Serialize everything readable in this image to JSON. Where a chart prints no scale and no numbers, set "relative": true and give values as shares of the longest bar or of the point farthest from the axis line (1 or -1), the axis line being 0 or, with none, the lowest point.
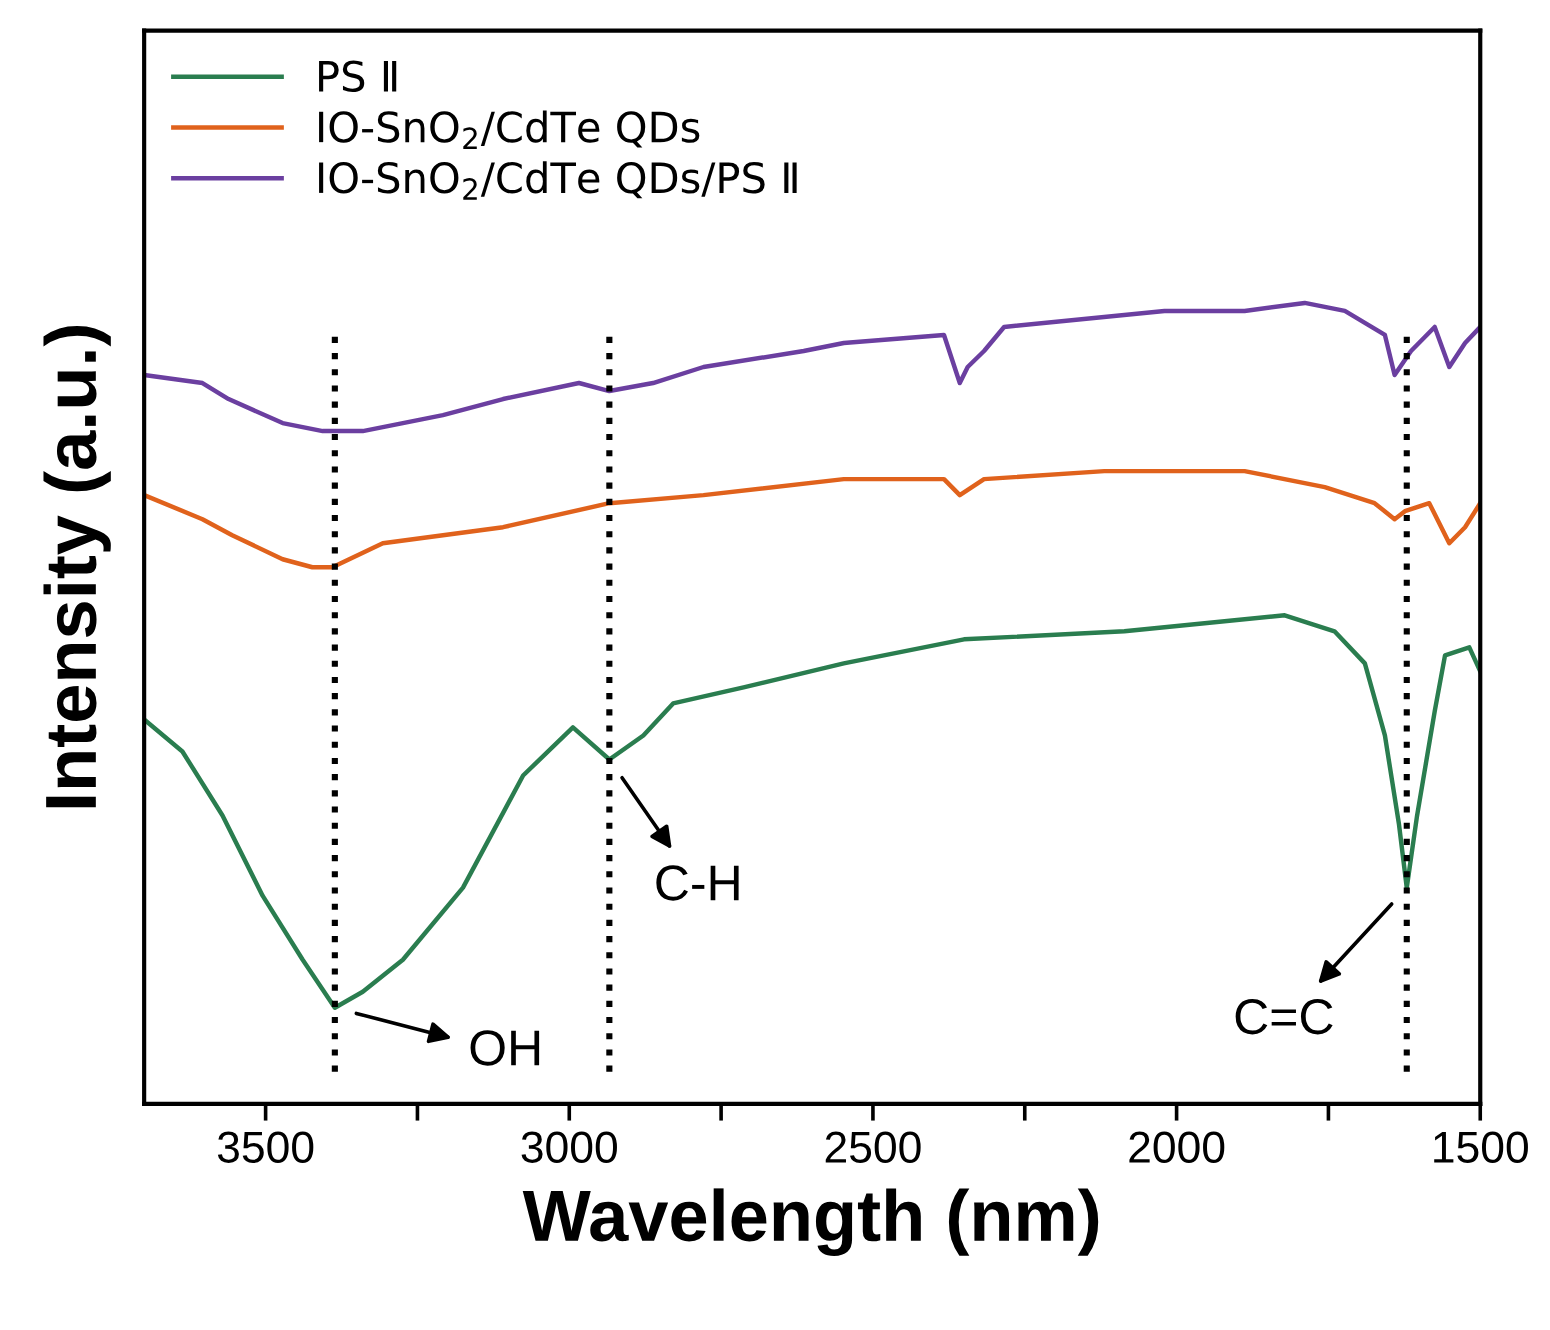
{
  "chart_data": {
    "type": "line",
    "xlabel": "Wavelength (nm)",
    "ylabel": "Intensity (a.u.)",
    "relative": true,
    "xlim": [
      3700,
      1500
    ],
    "xticks": [
      3500,
      {
        "value": 3250,
        "label": null
      },
      3000,
      {
        "value": 2750,
        "label": null
      },
      2500,
      {
        "value": 2250,
        "label": null
      },
      2000,
      {
        "value": 1750,
        "label": null
      },
      1500
    ],
    "legend": "top left",
    "grid": false,
    "line_style": "solid",
    "marker": "none",
    "series": [
      {
        "name": "PS Ⅱ",
        "color": "#2a7d4f",
        "x": [
          3700,
          3637,
          3571,
          3505,
          3439,
          3386,
          3340,
          3274,
          3175,
          3076,
          2994,
          2934,
          2878,
          2829,
          2713,
          2548,
          2350,
          2086,
          1954,
          1822,
          1740,
          1690,
          1657,
          1634,
          1621,
          1604,
          1575,
          1558,
          1518,
          1500
        ],
        "values": [
          0.48,
          0.44,
          0.36,
          0.26,
          0.18,
          0.12,
          0.14,
          0.18,
          0.27,
          0.41,
          0.47,
          0.43,
          0.46,
          0.5,
          0.52,
          0.55,
          0.58,
          0.59,
          0.6,
          0.61,
          0.59,
          0.55,
          0.46,
          0.35,
          0.27,
          0.36,
          0.49,
          0.56,
          0.57,
          0.54
        ]
      },
      {
        "name": "IO-SnO$_{2}$/CdTe QDs",
        "color": "#e0621c",
        "x": [
          3700,
          3604,
          3555,
          3472,
          3423,
          3390,
          3307,
          3109,
          2934,
          2779,
          2548,
          2383,
          2357,
          2317,
          2119,
          1888,
          1756,
          1674,
          1641,
          1624,
          1584,
          1551,
          1525,
          1500
        ],
        "values": [
          0.76,
          0.73,
          0.71,
          0.68,
          0.67,
          0.67,
          0.7,
          0.72,
          0.75,
          0.76,
          0.78,
          0.78,
          0.76,
          0.78,
          0.79,
          0.79,
          0.77,
          0.75,
          0.73,
          0.74,
          0.75,
          0.7,
          0.72,
          0.75
        ]
      },
      {
        "name": "IO-SnO$_{2}$/CdTe QDs/PS Ⅱ",
        "color": "#6b3fa0",
        "x": [
          3700,
          3604,
          3561,
          3472,
          3406,
          3340,
          3208,
          3109,
          2984,
          2934,
          2862,
          2779,
          2614,
          2548,
          2383,
          2357,
          2344,
          2317,
          2284,
          2020,
          1888,
          1789,
          1723,
          1657,
          1641,
          1614,
          1575,
          1551,
          1525,
          1500
        ],
        "values": [
          0.91,
          0.9,
          0.88,
          0.85,
          0.84,
          0.84,
          0.86,
          0.88,
          0.9,
          0.89,
          0.9,
          0.92,
          0.94,
          0.95,
          0.96,
          0.9,
          0.92,
          0.94,
          0.97,
          0.99,
          0.99,
          1.0,
          0.99,
          0.96,
          0.91,
          0.94,
          0.97,
          0.92,
          0.95,
          0.97
        ]
      }
    ],
    "ref_lines": [
      {
        "axis": "x",
        "value": 3386,
        "color": "#000000",
        "line_style": "dotted"
      },
      {
        "axis": "x",
        "value": 2934,
        "color": "#000000",
        "line_style": "dotted"
      },
      {
        "axis": "x",
        "value": 1621,
        "color": "#000000",
        "line_style": "dotted"
      }
    ],
    "annotations": [
      {
        "text": "OH",
        "x": 3386,
        "y": 0.12
      },
      {
        "text": "C-H",
        "x": 2934,
        "y": 0.43
      },
      {
        "text": "C=C",
        "x": 1621,
        "y": 0.27
      }
    ]
  }
}
